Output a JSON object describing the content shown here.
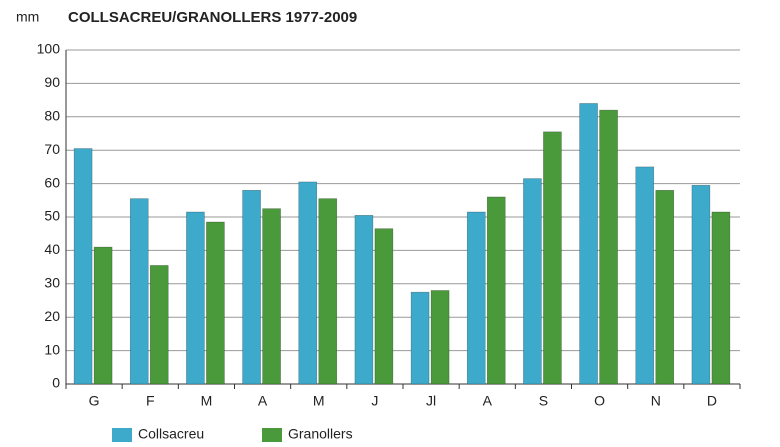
{
  "chart_data": {
    "type": "bar",
    "title": "COLLSACREU/GRANOLLERS 1977-2009",
    "y_label": "mm",
    "categories": [
      "G",
      "F",
      "M",
      "A",
      "M",
      "J",
      "Jl",
      "A",
      "S",
      "O",
      "N",
      "D"
    ],
    "series": [
      {
        "name": "Collsacreu",
        "color": "#3eaacb",
        "values": [
          70.5,
          55.5,
          51.5,
          58,
          60.5,
          50.5,
          27.5,
          51.5,
          61.5,
          84,
          65,
          59.5
        ]
      },
      {
        "name": "Granollers",
        "color": "#4a9a3b",
        "values": [
          41,
          35.5,
          48.5,
          52.5,
          55.5,
          46.5,
          28,
          56,
          75.5,
          82,
          58,
          51.5
        ]
      }
    ],
    "ylim": [
      0,
      100
    ],
    "yticks": [
      0,
      10,
      20,
      30,
      40,
      50,
      60,
      70,
      80,
      90,
      100
    ],
    "grid": true,
    "legend": "bottom"
  }
}
